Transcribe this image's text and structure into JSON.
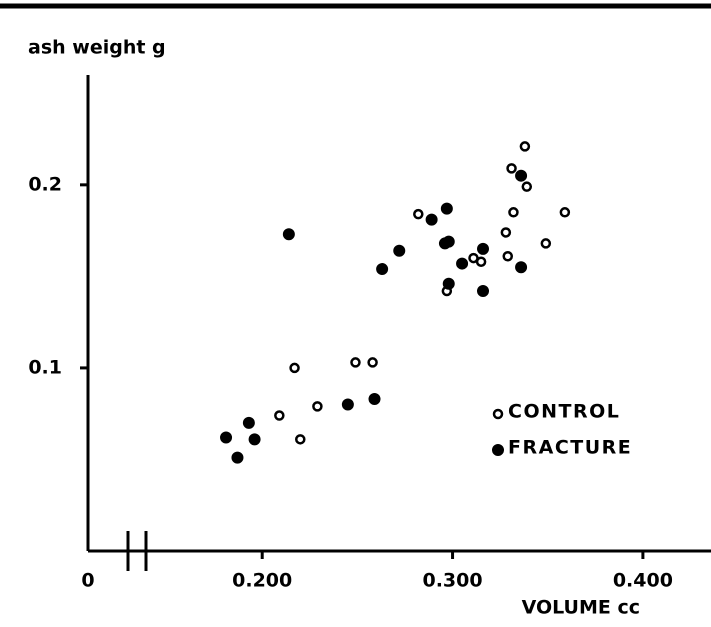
{
  "chart_data": {
    "type": "scatter",
    "ylabel": "ash weight g",
    "xlabel": "VOLUME  cc",
    "xlim": [
      0.14,
      0.43
    ],
    "ylim": [
      0,
      0.26
    ],
    "x_break": true,
    "xticks": [
      0,
      {
        "value": 0.2,
        "label": "0.200"
      },
      {
        "value": 0.3,
        "label": "0.300"
      },
      {
        "value": 0.4,
        "label": "0.400"
      }
    ],
    "yticks": [
      0.1,
      0.2
    ],
    "legend": "lower right",
    "series": [
      {
        "name": "CONTROL",
        "color": "#000000",
        "marker": "open",
        "x": [
          0.282,
          0.217,
          0.209,
          0.22,
          0.229,
          0.249,
          0.258,
          0.297,
          0.311,
          0.315,
          0.328,
          0.329,
          0.332,
          0.331,
          0.338,
          0.339,
          0.349,
          0.359
        ],
        "values": [
          0.184,
          0.1,
          0.074,
          0.061,
          0.079,
          0.103,
          0.103,
          0.142,
          0.16,
          0.158,
          0.174,
          0.161,
          0.185,
          0.209,
          0.221,
          0.199,
          0.168,
          0.185
        ]
      },
      {
        "name": "FRACTURE",
        "color": "#000000",
        "marker": "filled",
        "x": [
          0.214,
          0.181,
          0.187,
          0.193,
          0.196,
          0.245,
          0.259,
          0.263,
          0.272,
          0.289,
          0.297,
          0.296,
          0.298,
          0.298,
          0.305,
          0.316,
          0.316,
          0.336,
          0.336
        ],
        "values": [
          0.173,
          0.062,
          0.051,
          0.07,
          0.061,
          0.08,
          0.083,
          0.154,
          0.164,
          0.181,
          0.187,
          0.168,
          0.169,
          0.146,
          0.157,
          0.165,
          0.142,
          0.155,
          0.205
        ]
      }
    ]
  }
}
